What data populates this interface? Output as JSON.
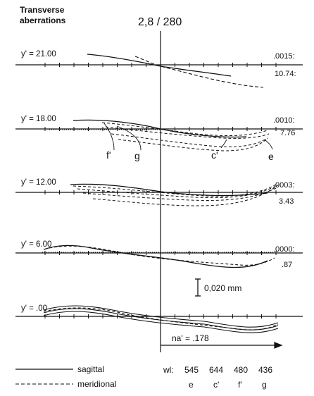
{
  "header": {
    "title_line1": "Transverse",
    "title_line2": "aberrations",
    "lens": "2,8 / 280"
  },
  "rows": [
    {
      "y_label": "y' = 21.00",
      "value_top": ".0015:",
      "value_bottom": "10.74:"
    },
    {
      "y_label": "y' = 18.00",
      "value_top": ".0010:",
      "value_bottom": "7.76"
    },
    {
      "y_label": "y' = 12.00",
      "value_top": ".0003:",
      "value_bottom": "3.43"
    },
    {
      "y_label": "y' = 6.00",
      "value_top": ".0000:",
      "value_bottom": ".87"
    },
    {
      "y_label": "y' = .00"
    }
  ],
  "curve_labels": [
    "f'",
    "g",
    "c'",
    "e"
  ],
  "scale_bar": "0,020 mm",
  "aperture": "na' = .178",
  "legend": {
    "sagittal": "sagittal",
    "meridional": "meridional"
  },
  "wavelengths": {
    "label": "wl:",
    "values": [
      "545",
      "644",
      "480",
      "436"
    ],
    "names": [
      "e",
      "c'",
      "f'",
      "g"
    ]
  }
}
